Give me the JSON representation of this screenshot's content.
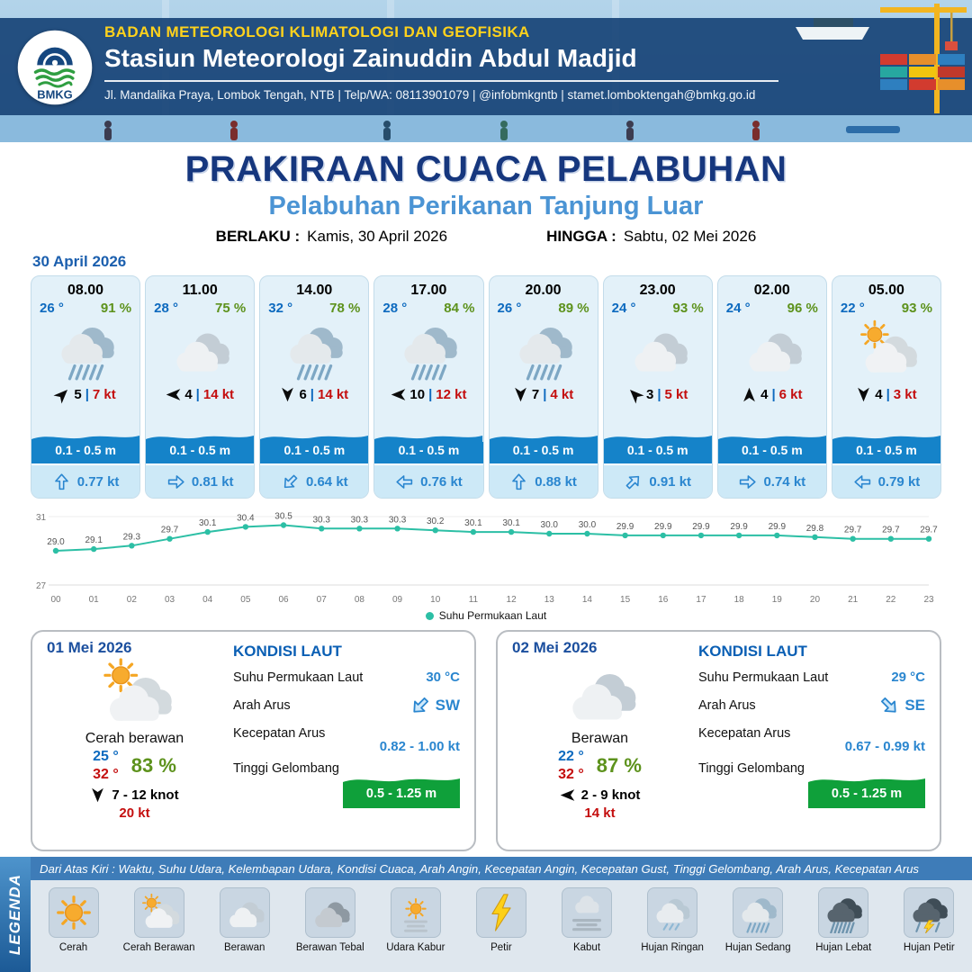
{
  "header": {
    "org": "BADAN METEOROLOGI KLIMATOLOGI DAN GEOFISIKA",
    "station": "Stasiun Meteorologi Zainuddin Abdul Madjid",
    "contact": "Jl. Mandalika Praya, Lombok Tengah, NTB | Telp/WA: 08113901079 | @infobmkgntb | stamet.lomboktengah@bmkg.go.id",
    "logo_text": "BMKG"
  },
  "title": {
    "main": "PRAKIRAAN CUACA PELABUHAN",
    "sub": "Pelabuhan Perikanan Tanjung Luar",
    "valid_label": "BERLAKU :",
    "valid_value": "Kamis, 30 April 2026",
    "until_label": "HINGGA :",
    "until_value": "Sabtu, 02 Mei 2026"
  },
  "forecast_date": "30 April 2026",
  "hourly": [
    {
      "time": "08.00",
      "temp": "26 °",
      "rh": "91 %",
      "icon": "rain-med",
      "wind_dir_deg": -45,
      "wind": "5",
      "gust": "7 kt",
      "wave": "0.1 - 0.5 m",
      "current_dir_deg": -90,
      "current": "0.77 kt"
    },
    {
      "time": "11.00",
      "temp": "28 °",
      "rh": "75 %",
      "icon": "cloudy",
      "wind_dir_deg": 180,
      "wind": "4",
      "gust": "14 kt",
      "wave": "0.1 - 0.5 m",
      "current_dir_deg": 0,
      "current": "0.81 kt"
    },
    {
      "time": "14.00",
      "temp": "32 °",
      "rh": "78 %",
      "icon": "rain-med",
      "wind_dir_deg": 90,
      "wind": "6",
      "gust": "14 kt",
      "wave": "0.1 - 0.5 m",
      "current_dir_deg": 135,
      "current": "0.64 kt"
    },
    {
      "time": "17.00",
      "temp": "28 °",
      "rh": "84 %",
      "icon": "rain-med",
      "wind_dir_deg": 180,
      "wind": "10",
      "gust": "12 kt",
      "wave": "0.1 - 0.5 m",
      "current_dir_deg": 180,
      "current": "0.76 kt"
    },
    {
      "time": "20.00",
      "temp": "26 °",
      "rh": "89 %",
      "icon": "rain-med",
      "wind_dir_deg": 90,
      "wind": "7",
      "gust": "4 kt",
      "wave": "0.1 - 0.5 m",
      "current_dir_deg": -90,
      "current": "0.88 kt"
    },
    {
      "time": "23.00",
      "temp": "24 °",
      "rh": "93 %",
      "icon": "cloudy",
      "wind_dir_deg": -135,
      "wind": "3",
      "gust": "5 kt",
      "wave": "0.1 - 0.5 m",
      "current_dir_deg": -45,
      "current": "0.91 kt"
    },
    {
      "time": "02.00",
      "temp": "24 °",
      "rh": "96 %",
      "icon": "cloudy",
      "wind_dir_deg": -90,
      "wind": "4",
      "gust": "6 kt",
      "wave": "0.1 - 0.5 m",
      "current_dir_deg": 0,
      "current": "0.74 kt"
    },
    {
      "time": "05.00",
      "temp": "22 °",
      "rh": "93 %",
      "icon": "sun-cloud",
      "wind_dir_deg": 90,
      "wind": "4",
      "gust": "3 kt",
      "wave": "0.1 - 0.5 m",
      "current_dir_deg": 180,
      "current": "0.79 kt"
    }
  ],
  "chart_data": {
    "type": "line",
    "title": "",
    "x": [
      "00",
      "01",
      "02",
      "03",
      "04",
      "05",
      "06",
      "07",
      "08",
      "09",
      "10",
      "11",
      "12",
      "13",
      "14",
      "15",
      "16",
      "17",
      "18",
      "19",
      "20",
      "21",
      "22",
      "23"
    ],
    "series": [
      {
        "name": "Suhu Permukaan Laut",
        "values": [
          29.0,
          29.1,
          29.3,
          29.7,
          30.1,
          30.4,
          30.5,
          30.3,
          30.3,
          30.3,
          30.2,
          30.1,
          30.1,
          30.0,
          30.0,
          29.9,
          29.9,
          29.9,
          29.9,
          29.9,
          29.8,
          29.7,
          29.7,
          29.7
        ]
      }
    ],
    "ylim": [
      27,
      31
    ],
    "line_color": "#2cbfa5",
    "legend_position": "bottom",
    "grid": "minimal"
  },
  "sea_labels": {
    "title": "KONDISI LAUT",
    "sst": "Suhu Permukaan Laut",
    "dir": "Arah Arus",
    "speed": "Kecepatan Arus",
    "wave": "Tinggi Gelombang"
  },
  "days": [
    {
      "date": "01 Mei 2026",
      "icon": "sun-cloud",
      "cond": "Cerah berawan",
      "tmin": "25 °",
      "tmax": "32 °",
      "rh": "83 %",
      "wind_dir_deg": 90,
      "wind": "7  - 12 knot",
      "gust": "20 kt",
      "sea": {
        "sst": "30 °C",
        "dir": "SW",
        "dir_deg": 135,
        "speed": "0.82 - 1.00 kt",
        "wave": "0.5 - 1.25 m"
      }
    },
    {
      "date": "02 Mei 2026",
      "icon": "cloudy",
      "cond": "Berawan",
      "tmin": "22 °",
      "tmax": "32 °",
      "rh": "87 %",
      "wind_dir_deg": 180,
      "wind": "2  - 9 knot",
      "gust": "14 kt",
      "sea": {
        "sst": "29 °C",
        "dir": "SE",
        "dir_deg": 45,
        "speed": "0.67 - 0.99 kt",
        "wave": "0.5 - 1.25 m"
      }
    }
  ],
  "legend": {
    "title": "LEGENDA",
    "note": "Dari Atas Kiri : Waktu, Suhu Udara, Kelembapan Udara, Kondisi Cuaca, Arah Angin, Kecepatan Angin, Kecepatan Gust, Tinggi Gelombang, Arah Arus, Kecepatan Arus",
    "items": [
      {
        "icon": "sun",
        "label": "Cerah"
      },
      {
        "icon": "sun-cloud",
        "label": "Cerah Berawan"
      },
      {
        "icon": "cloudy",
        "label": "Berawan"
      },
      {
        "icon": "cloud-thick",
        "label": "Berawan Tebal"
      },
      {
        "icon": "haze",
        "label": "Udara Kabur"
      },
      {
        "icon": "bolt",
        "label": "Petir"
      },
      {
        "icon": "fog",
        "label": "Kabut"
      },
      {
        "icon": "rain-light",
        "label": "Hujan Ringan"
      },
      {
        "icon": "rain-med",
        "label": "Hujan Sedang"
      },
      {
        "icon": "rain-heavy",
        "label": "Hujan Lebat"
      },
      {
        "icon": "storm",
        "label": "Hujan Petir"
      }
    ]
  }
}
